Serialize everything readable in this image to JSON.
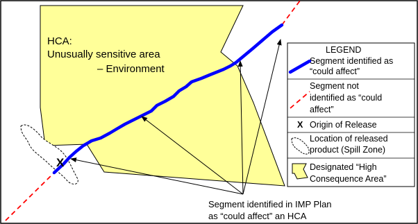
{
  "hca_label": {
    "line1": "HCA:",
    "line2": "Unusually sensitive area",
    "line3": "– Environment"
  },
  "origin_marker": "X",
  "caption": {
    "line1": "Segment identified in IMP Plan",
    "line2": "as “could affect” an HCA"
  },
  "legend": {
    "title": "LEGEND",
    "could_affect": {
      "line1": "Segment identified as",
      "line2": "“could affect”"
    },
    "not_could_affect": {
      "line1": "Segment not",
      "line2": "identified as “could",
      "line3": "affect”"
    },
    "origin": {
      "symbol": "X",
      "label": "Origin of Release"
    },
    "spill": {
      "line1": "Location of released",
      "line2": "product (Spill Zone)"
    },
    "hca": {
      "line1": "Designated “High",
      "line2": "Consequence Area”"
    }
  },
  "colors": {
    "hca_fill": "#ffff99",
    "hca_stroke": "#000000",
    "could_affect_line": "#0000ff",
    "not_could_affect_line": "#ff0000"
  }
}
